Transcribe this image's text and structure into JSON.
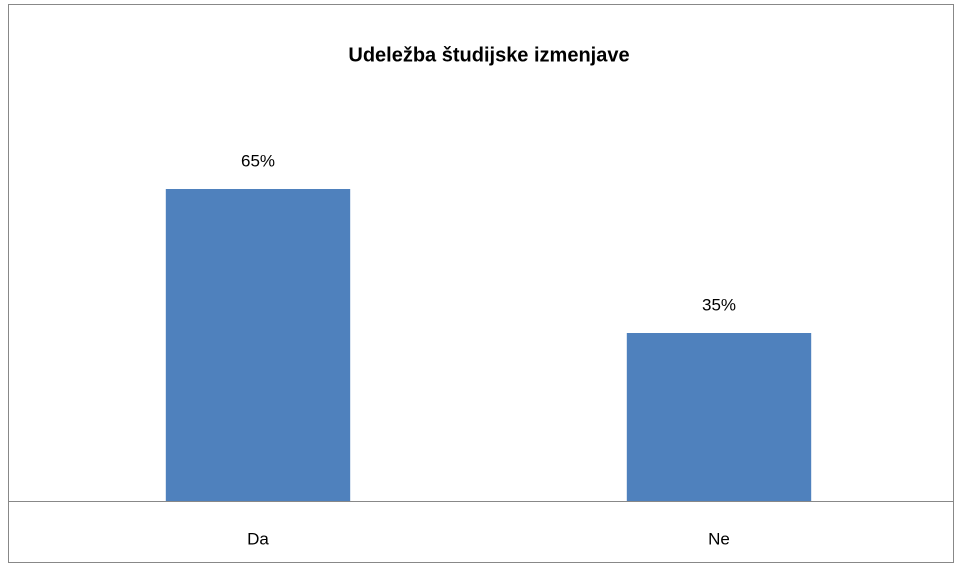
{
  "chart_data": {
    "type": "bar",
    "title": "Udeležba študijske izmenjave",
    "categories": [
      "Da",
      "Ne"
    ],
    "values": [
      65,
      35
    ],
    "value_labels": [
      "65%",
      "35%"
    ],
    "color": "#4f81bd",
    "ylim": [
      0,
      70
    ]
  }
}
